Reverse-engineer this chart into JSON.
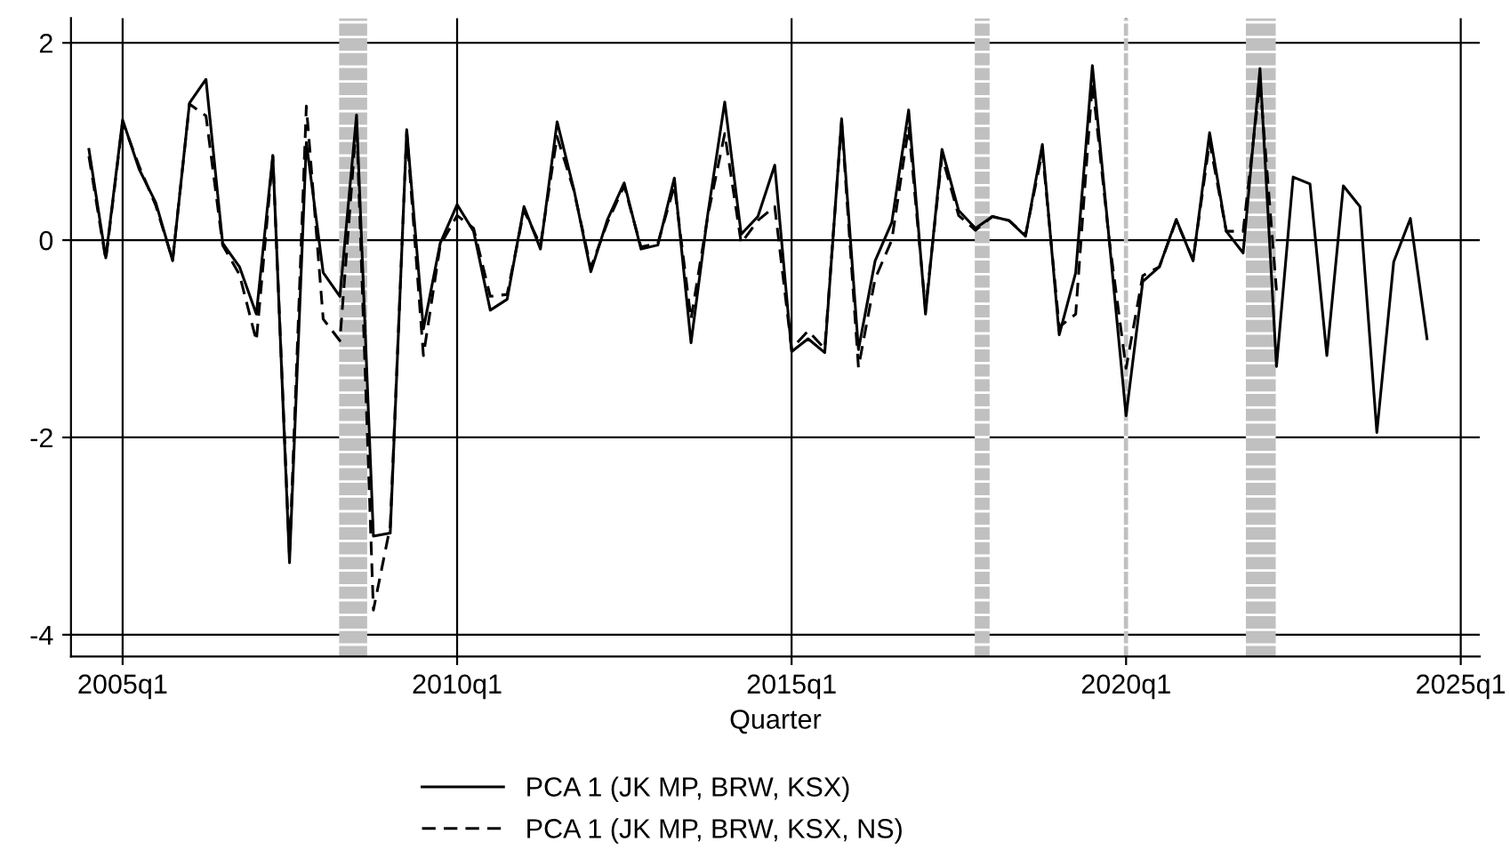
{
  "chart_data": {
    "type": "line",
    "xlabel": "Quarter",
    "x": [
      "2004-07",
      "2004-10",
      "2005-01",
      "2005-04",
      "2005-07",
      "2005-10",
      "2006-01",
      "2006-04",
      "2006-07",
      "2006-10",
      "2007-01",
      "2007-04",
      "2007-07",
      "2007-10",
      "2008-01",
      "2008-04",
      "2008-07",
      "2008-10",
      "2009-01",
      "2009-04",
      "2009-07",
      "2009-10",
      "2010-01",
      "2010-04",
      "2010-07",
      "2010-10",
      "2011-01",
      "2011-04",
      "2011-07",
      "2011-10",
      "2012-01",
      "2012-04",
      "2012-07",
      "2012-10",
      "2013-01",
      "2013-04",
      "2013-07",
      "2013-10",
      "2014-01",
      "2014-04",
      "2014-07",
      "2014-10",
      "2015-01",
      "2015-04",
      "2015-07",
      "2015-10",
      "2016-01",
      "2016-04",
      "2016-07",
      "2016-10",
      "2017-01",
      "2017-04",
      "2017-07",
      "2017-10",
      "2018-01",
      "2018-04",
      "2018-07",
      "2018-10",
      "2019-01",
      "2019-04",
      "2019-07",
      "2019-10",
      "2020-01",
      "2020-04",
      "2020-07",
      "2020-10",
      "2021-01",
      "2021-04",
      "2021-07",
      "2021-10",
      "2022-01",
      "2022-04",
      "2022-07",
      "2022-10",
      "2023-01",
      "2023-04",
      "2023-07",
      "2023-10",
      "2024-01",
      "2024-04",
      "2024-07"
    ],
    "series": [
      {
        "name": "PCA 1 (JK MP, BRW, KSX)",
        "color": "#000000",
        "line_style": "solid",
        "values": [
          0.92,
          -0.18,
          1.22,
          0.72,
          0.38,
          -0.21,
          1.39,
          1.63,
          -0.03,
          -0.27,
          -0.75,
          0.86,
          -3.27,
          0.99,
          -0.33,
          -0.57,
          1.27,
          -3.0,
          -2.97,
          1.12,
          -0.9,
          -0.03,
          0.36,
          0.09,
          -0.71,
          -0.6,
          0.34,
          -0.09,
          1.2,
          0.51,
          -0.32,
          0.21,
          0.58,
          -0.09,
          -0.05,
          0.63,
          -1.04,
          0.27,
          1.4,
          0.06,
          0.24,
          0.76,
          -1.13,
          -1.0,
          -1.14,
          1.23,
          -1.11,
          -0.21,
          0.18,
          1.32,
          -0.75,
          0.92,
          0.3,
          0.12,
          0.24,
          0.2,
          0.04,
          0.97,
          -0.96,
          -0.33,
          1.77,
          0.0,
          -1.78,
          -0.42,
          -0.27,
          0.21,
          -0.21,
          1.09,
          0.09,
          -0.13,
          1.74,
          -1.28,
          0.64,
          0.57,
          -1.17,
          0.55,
          0.34,
          -1.95,
          -0.22,
          0.22,
          -1.0
        ]
      },
      {
        "name": "PCA 1 (JK MP, BRW, KSX, NS)",
        "color": "#000000",
        "line_style": "dashed",
        "values": [
          0.85,
          -0.2,
          1.2,
          0.75,
          0.35,
          -0.2,
          1.38,
          1.26,
          -0.05,
          -0.35,
          -1.02,
          0.85,
          -3.2,
          1.36,
          -0.8,
          -1.02,
          1.2,
          -3.75,
          -2.9,
          1.1,
          -1.17,
          -0.05,
          0.25,
          0.12,
          -0.57,
          -0.55,
          0.3,
          -0.05,
          1.05,
          0.5,
          -0.28,
          0.18,
          0.55,
          -0.07,
          -0.03,
          0.55,
          -0.8,
          0.25,
          1.08,
          -0.03,
          0.2,
          0.34,
          -1.1,
          -0.92,
          -1.1,
          1.2,
          -1.29,
          -0.39,
          0.0,
          1.15,
          -0.7,
          0.85,
          0.25,
          0.1,
          0.24,
          0.2,
          0.05,
          0.9,
          -0.88,
          -0.75,
          1.6,
          0.0,
          -1.3,
          -0.36,
          -0.27,
          0.2,
          -0.2,
          1.0,
          0.09,
          0.09,
          1.6,
          -0.51,
          null,
          null,
          null,
          null,
          null,
          null,
          null,
          null,
          null
        ]
      }
    ],
    "xlim": [
      "2004-03-25",
      "2025-04-15"
    ],
    "ylim": [
      -4.22,
      2.25
    ],
    "xticks": [
      {
        "value": "2005-01",
        "label": "2005q1"
      },
      {
        "value": "2010-01",
        "label": "2010q1"
      },
      {
        "value": "2015-01",
        "label": "2015q1"
      },
      {
        "value": "2020-01",
        "label": "2020q1"
      },
      {
        "value": "2025-01",
        "label": "2025q1"
      }
    ],
    "yticks": [
      {
        "value": -4,
        "label": "-4"
      },
      {
        "value": -2,
        "label": "-2"
      },
      0,
      2
    ],
    "bands": [
      {
        "axis": "x",
        "from": "2008-03-28",
        "to": "2008-08-28",
        "color": "#c0c0c0"
      },
      {
        "axis": "x",
        "from": "2017-09-27",
        "to": "2017-12-17",
        "color": "#c0c0c0"
      },
      {
        "axis": "x",
        "from": "2019-12-20",
        "to": "2020-01-12",
        "color": "#c0c0c0"
      },
      {
        "axis": "x",
        "from": "2021-10-16",
        "to": "2022-03-28",
        "color": "#c0c0c0"
      }
    ],
    "grid": true,
    "legend": "bottom",
    "marker": "none"
  }
}
